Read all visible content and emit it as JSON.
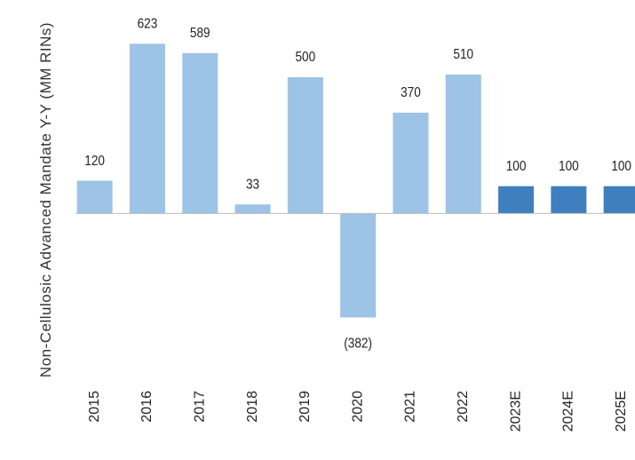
{
  "chart_data": {
    "type": "bar",
    "y_label": "Non-Cellulosic Advanced Mandate Y-Y (MM RINs)",
    "categories": [
      "2015",
      "2016",
      "2017",
      "2018",
      "2019",
      "2020",
      "2021",
      "2022",
      "2023E",
      "2024E",
      "2025E"
    ],
    "values": [
      120,
      623,
      589,
      33,
      500,
      -382,
      370,
      510,
      100,
      100,
      100
    ],
    "value_labels": [
      "120",
      "623",
      "589",
      "33",
      "500",
      "(382)",
      "370",
      "510",
      "100",
      "100",
      "100"
    ],
    "colors": [
      "#9dc3e6",
      "#9dc3e6",
      "#9dc3e6",
      "#9dc3e6",
      "#9dc3e6",
      "#9dc3e6",
      "#9dc3e6",
      "#9dc3e6",
      "#3f7fbf",
      "#3f7fbf",
      "#3f7fbf"
    ],
    "ylim": [
      -400,
      650
    ]
  }
}
